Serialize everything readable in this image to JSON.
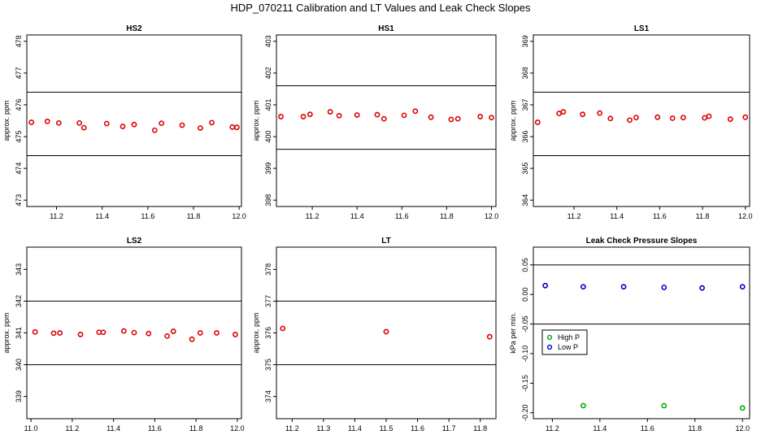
{
  "title": "HDP_070211  Calibration and LT Values and Leak Check Slopes",
  "chart_data": [
    {
      "type": "scatter",
      "title": "HS2",
      "ylabel": "approx. ppm",
      "xlim": [
        11.07,
        12.01
      ],
      "ylim": [
        472.8,
        478.2
      ],
      "xticks": [
        11.2,
        11.4,
        11.6,
        11.8,
        12.0
      ],
      "xtick_labels": [
        "11.2",
        "11.4",
        "11.6",
        "11.8",
        "12.0"
      ],
      "yticks": [
        473,
        474,
        475,
        476,
        477,
        478
      ],
      "ytick_labels": [
        "473",
        "474",
        "475",
        "476",
        "477",
        "478"
      ],
      "hlines": [
        476.4,
        474.4
      ],
      "series": [
        {
          "color": "#dd0000",
          "points": [
            [
              11.09,
              475.45
            ],
            [
              11.16,
              475.48
            ],
            [
              11.21,
              475.43
            ],
            [
              11.3,
              475.43
            ],
            [
              11.32,
              475.28
            ],
            [
              11.42,
              475.41
            ],
            [
              11.49,
              475.32
            ],
            [
              11.54,
              475.38
            ],
            [
              11.63,
              475.2
            ],
            [
              11.66,
              475.42
            ],
            [
              11.75,
              475.36
            ],
            [
              11.83,
              475.27
            ],
            [
              11.88,
              475.44
            ],
            [
              11.97,
              475.3
            ],
            [
              11.99,
              475.29
            ]
          ]
        }
      ]
    },
    {
      "type": "scatter",
      "title": "HS1",
      "ylabel": "approx. ppm",
      "xlim": [
        11.04,
        12.02
      ],
      "ylim": [
        397.8,
        403.2
      ],
      "xticks": [
        11.2,
        11.4,
        11.6,
        11.8,
        12.0
      ],
      "xtick_labels": [
        "11.2",
        "11.4",
        "11.6",
        "11.8",
        "12.0"
      ],
      "yticks": [
        398,
        399,
        400,
        401,
        402,
        403
      ],
      "ytick_labels": [
        "398",
        "399",
        "400",
        "401",
        "402",
        "403"
      ],
      "hlines": [
        401.6,
        399.6
      ],
      "series": [
        {
          "color": "#dd0000",
          "points": [
            [
              11.06,
              400.63
            ],
            [
              11.16,
              400.63
            ],
            [
              11.19,
              400.7
            ],
            [
              11.28,
              400.78
            ],
            [
              11.32,
              400.66
            ],
            [
              11.4,
              400.68
            ],
            [
              11.49,
              400.69
            ],
            [
              11.52,
              400.56
            ],
            [
              11.61,
              400.67
            ],
            [
              11.66,
              400.8
            ],
            [
              11.73,
              400.61
            ],
            [
              11.82,
              400.54
            ],
            [
              11.85,
              400.56
            ],
            [
              11.95,
              400.63
            ],
            [
              12.0,
              400.6
            ]
          ]
        }
      ]
    },
    {
      "type": "scatter",
      "title": "LS1",
      "ylabel": "approx. ppm",
      "xlim": [
        11.01,
        12.02
      ],
      "ylim": [
        363.8,
        369.2
      ],
      "xticks": [
        11.2,
        11.4,
        11.6,
        11.8,
        12.0
      ],
      "xtick_labels": [
        "11.2",
        "11.4",
        "11.6",
        "11.8",
        "12.0"
      ],
      "yticks": [
        364,
        365,
        366,
        367,
        368,
        369
      ],
      "ytick_labels": [
        "364",
        "365",
        "366",
        "367",
        "368",
        "369"
      ],
      "hlines": [
        367.4,
        365.4
      ],
      "series": [
        {
          "color": "#dd0000",
          "points": [
            [
              11.03,
              366.45
            ],
            [
              11.13,
              366.73
            ],
            [
              11.15,
              366.78
            ],
            [
              11.24,
              366.7
            ],
            [
              11.32,
              366.74
            ],
            [
              11.37,
              366.57
            ],
            [
              11.46,
              366.52
            ],
            [
              11.49,
              366.6
            ],
            [
              11.59,
              366.61
            ],
            [
              11.66,
              366.58
            ],
            [
              11.71,
              366.6
            ],
            [
              11.81,
              366.59
            ],
            [
              11.83,
              366.64
            ],
            [
              11.93,
              366.55
            ],
            [
              12.0,
              366.61
            ]
          ]
        }
      ]
    },
    {
      "type": "scatter",
      "title": "LS2",
      "ylabel": "approx. ppm",
      "xlim": [
        10.98,
        12.02
      ],
      "ylim": [
        338.3,
        343.7
      ],
      "xticks": [
        11.0,
        11.2,
        11.4,
        11.6,
        11.8,
        12.0
      ],
      "xtick_labels": [
        "11.0",
        "11.2",
        "11.4",
        "11.6",
        "11.8",
        "12.0"
      ],
      "yticks": [
        339,
        340,
        341,
        342,
        343
      ],
      "ytick_labels": [
        "339",
        "340",
        "341",
        "342",
        "343"
      ],
      "hlines": [
        342.0,
        340.0
      ],
      "series": [
        {
          "color": "#dd0000",
          "points": [
            [
              11.02,
              341.03
            ],
            [
              11.11,
              340.99
            ],
            [
              11.14,
              341.0
            ],
            [
              11.24,
              340.95
            ],
            [
              11.33,
              341.02
            ],
            [
              11.35,
              341.02
            ],
            [
              11.45,
              341.06
            ],
            [
              11.5,
              341.01
            ],
            [
              11.57,
              340.98
            ],
            [
              11.66,
              340.9
            ],
            [
              11.69,
              341.05
            ],
            [
              11.78,
              340.8
            ],
            [
              11.82,
              341.0
            ],
            [
              11.9,
              341.0
            ],
            [
              11.99,
              340.95
            ]
          ]
        }
      ]
    },
    {
      "type": "scatter",
      "title": "LT",
      "ylabel": "approx. ppm",
      "xlim": [
        11.15,
        11.85
      ],
      "ylim": [
        373.3,
        378.7
      ],
      "xticks": [
        11.2,
        11.3,
        11.4,
        11.5,
        11.6,
        11.7,
        11.8
      ],
      "xtick_labels": [
        "11.2",
        "11.3",
        "11.4",
        "11.5",
        "11.6",
        "11.7",
        "11.8"
      ],
      "yticks": [
        374,
        375,
        376,
        377,
        378
      ],
      "ytick_labels": [
        "374",
        "375",
        "376",
        "377",
        "378"
      ],
      "hlines": [
        377.0,
        375.0
      ],
      "series": [
        {
          "color": "#dd0000",
          "points": [
            [
              11.17,
              376.14
            ],
            [
              11.5,
              376.04
            ],
            [
              11.83,
              375.88
            ]
          ]
        }
      ]
    },
    {
      "type": "scatter",
      "title": "Leak Check Pressure Slopes",
      "ylabel": "kPa per min.",
      "xlim": [
        11.12,
        12.03
      ],
      "ylim": [
        -0.21,
        0.08
      ],
      "xticks": [
        11.2,
        11.4,
        11.6,
        11.8,
        12.0
      ],
      "xtick_labels": [
        "11.2",
        "11.4",
        "11.6",
        "11.8",
        "12.0"
      ],
      "yticks": [
        -0.2,
        -0.15,
        -0.1,
        -0.05,
        0.0,
        0.05
      ],
      "ytick_labels": [
        "-0.20",
        "-0.15",
        "-0.10",
        "-0.05",
        "0.00",
        "0.05"
      ],
      "hlines": [
        0.05,
        -0.05
      ],
      "legend": {
        "position": "left",
        "entries": [
          {
            "label": "High P",
            "color": "#00aa00"
          },
          {
            "label": "Low P",
            "color": "#0000cc"
          }
        ]
      },
      "series": [
        {
          "name": "High P",
          "color": "#00aa00",
          "points": [
            [
              11.33,
              -0.188
            ],
            [
              11.67,
              -0.188
            ],
            [
              12.0,
              -0.192
            ]
          ]
        },
        {
          "name": "Low P",
          "color": "#0000cc",
          "points": [
            [
              11.17,
              0.015
            ],
            [
              11.33,
              0.013
            ],
            [
              11.5,
              0.013
            ],
            [
              11.67,
              0.012
            ],
            [
              11.83,
              0.011
            ],
            [
              12.0,
              0.013
            ]
          ]
        }
      ]
    }
  ]
}
